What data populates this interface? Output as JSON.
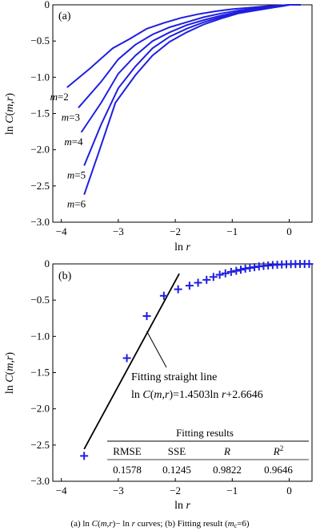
{
  "chart_data": [
    {
      "type": "line",
      "panel_label": "(a)",
      "xlabel": "ln r",
      "ylabel": "ln C(m,r)",
      "xlim": [
        -4.15,
        0.4
      ],
      "ylim": [
        -3.0,
        0.0
      ],
      "xticks": [
        -4,
        -3,
        -2,
        -1,
        0
      ],
      "yticks": [
        0,
        -0.5,
        -1.0,
        -1.5,
        -2.0,
        -2.5,
        -3.0
      ],
      "xtick_labels": [
        "−4",
        "−3",
        "−2",
        "−1",
        "0"
      ],
      "ytick_labels": [
        "0",
        "−0.5",
        "−1.0",
        "−1.5",
        "−2.0",
        "−2.5",
        "−3.0"
      ],
      "line_color": "#1f1fe0",
      "series": [
        {
          "name": "m=2",
          "x": [
            -3.9,
            -3.5,
            -3.1,
            -2.8,
            -2.5,
            -2.2,
            -1.9,
            -1.6,
            -1.3,
            -1.0,
            -0.7,
            -0.4,
            -0.15,
            0.0,
            0.2
          ],
          "y": [
            -1.14,
            -0.88,
            -0.6,
            -0.47,
            -0.33,
            -0.25,
            -0.18,
            -0.13,
            -0.09,
            -0.06,
            -0.04,
            -0.02,
            -0.008,
            0.0,
            0.0
          ]
        },
        {
          "name": "m=3",
          "x": [
            -3.7,
            -3.3,
            -3.0,
            -2.7,
            -2.4,
            -2.1,
            -1.8,
            -1.5,
            -1.2,
            -0.9,
            -0.6,
            -0.3,
            -0.1,
            0.0,
            0.2
          ],
          "y": [
            -1.42,
            -1.06,
            -0.75,
            -0.55,
            -0.41,
            -0.31,
            -0.24,
            -0.17,
            -0.12,
            -0.08,
            -0.05,
            -0.025,
            -0.01,
            0.0,
            0.0
          ]
        },
        {
          "name": "m=4",
          "x": [
            -3.65,
            -3.3,
            -3.0,
            -2.7,
            -2.4,
            -2.1,
            -1.8,
            -1.5,
            -1.2,
            -0.9,
            -0.6,
            -0.3,
            -0.1,
            0.0,
            0.2
          ],
          "y": [
            -1.76,
            -1.35,
            -0.95,
            -0.7,
            -0.5,
            -0.38,
            -0.28,
            -0.21,
            -0.15,
            -0.1,
            -0.06,
            -0.03,
            -0.012,
            0.0,
            0.0
          ]
        },
        {
          "name": "m=5",
          "x": [
            -3.6,
            -3.3,
            -3.0,
            -2.7,
            -2.4,
            -2.1,
            -1.8,
            -1.5,
            -1.2,
            -0.9,
            -0.6,
            -0.3,
            -0.1,
            0.0,
            0.2
          ],
          "y": [
            -2.22,
            -1.65,
            -1.15,
            -0.85,
            -0.6,
            -0.44,
            -0.33,
            -0.24,
            -0.17,
            -0.11,
            -0.07,
            -0.035,
            -0.014,
            0.0,
            0.0
          ]
        },
        {
          "name": "m=6",
          "x": [
            -3.6,
            -3.35,
            -3.05,
            -2.7,
            -2.4,
            -2.1,
            -1.8,
            -1.5,
            -1.2,
            -0.9,
            -0.6,
            -0.3,
            -0.1,
            0.0,
            0.2
          ],
          "y": [
            -2.62,
            -2.05,
            -1.35,
            -0.97,
            -0.7,
            -0.51,
            -0.38,
            -0.27,
            -0.19,
            -0.12,
            -0.08,
            -0.04,
            -0.016,
            0.0,
            0.0
          ]
        }
      ]
    },
    {
      "type": "scatter",
      "panel_label": "(b)",
      "xlabel": "ln r",
      "ylabel": "ln C(m,r)",
      "xlim": [
        -4.15,
        0.4
      ],
      "ylim": [
        -3.0,
        0.0
      ],
      "xticks": [
        -4,
        -3,
        -2,
        -1,
        0
      ],
      "yticks": [
        0,
        -0.5,
        -1.0,
        -1.5,
        -2.0,
        -2.5,
        -3.0
      ],
      "xtick_labels": [
        "−4",
        "−3",
        "−2",
        "−1",
        "0"
      ],
      "ytick_labels": [
        "0",
        "−0.5",
        "−1.0",
        "−1.5",
        "−2.0",
        "−2.5",
        "−3.0"
      ],
      "marker_color": "#1f1fe0",
      "points": {
        "x": [
          -3.6,
          -2.85,
          -2.5,
          -2.2,
          -1.95,
          -1.75,
          -1.6,
          -1.45,
          -1.33,
          -1.22,
          -1.12,
          -1.02,
          -0.93,
          -0.85,
          -0.77,
          -0.69,
          -0.61,
          -0.53,
          -0.45,
          -0.37,
          -0.29,
          -0.21,
          -0.13,
          -0.05,
          0.03,
          0.11,
          0.19,
          0.27,
          0.35
        ],
        "y": [
          -2.65,
          -1.3,
          -0.72,
          -0.44,
          -0.35,
          -0.3,
          -0.26,
          -0.22,
          -0.18,
          -0.15,
          -0.13,
          -0.11,
          -0.095,
          -0.08,
          -0.065,
          -0.055,
          -0.045,
          -0.035,
          -0.028,
          -0.022,
          -0.016,
          -0.012,
          -0.008,
          -0.005,
          -0.003,
          -0.002,
          -0.001,
          -0.001,
          -0.001
        ]
      },
      "fit_line": {
        "slope": 1.4503,
        "intercept": 2.6646,
        "x_range": [
          -3.6,
          -1.93
        ]
      },
      "annotation": {
        "line1": "Fitting straight line",
        "line2": "ln C(m,r)=1.4503ln r+2.6646",
        "target": [
          -2.5,
          -0.93
        ]
      },
      "table": {
        "title": "Fitting results",
        "headers": [
          "RMSE",
          "SSE",
          "R",
          "R2"
        ],
        "values": [
          "0.1578",
          "0.1245",
          "0.9822",
          "0.9646"
        ]
      }
    }
  ],
  "caption": "(a) ln C(m,r)− ln r curves; (b) Fitting result (m_c=6)"
}
